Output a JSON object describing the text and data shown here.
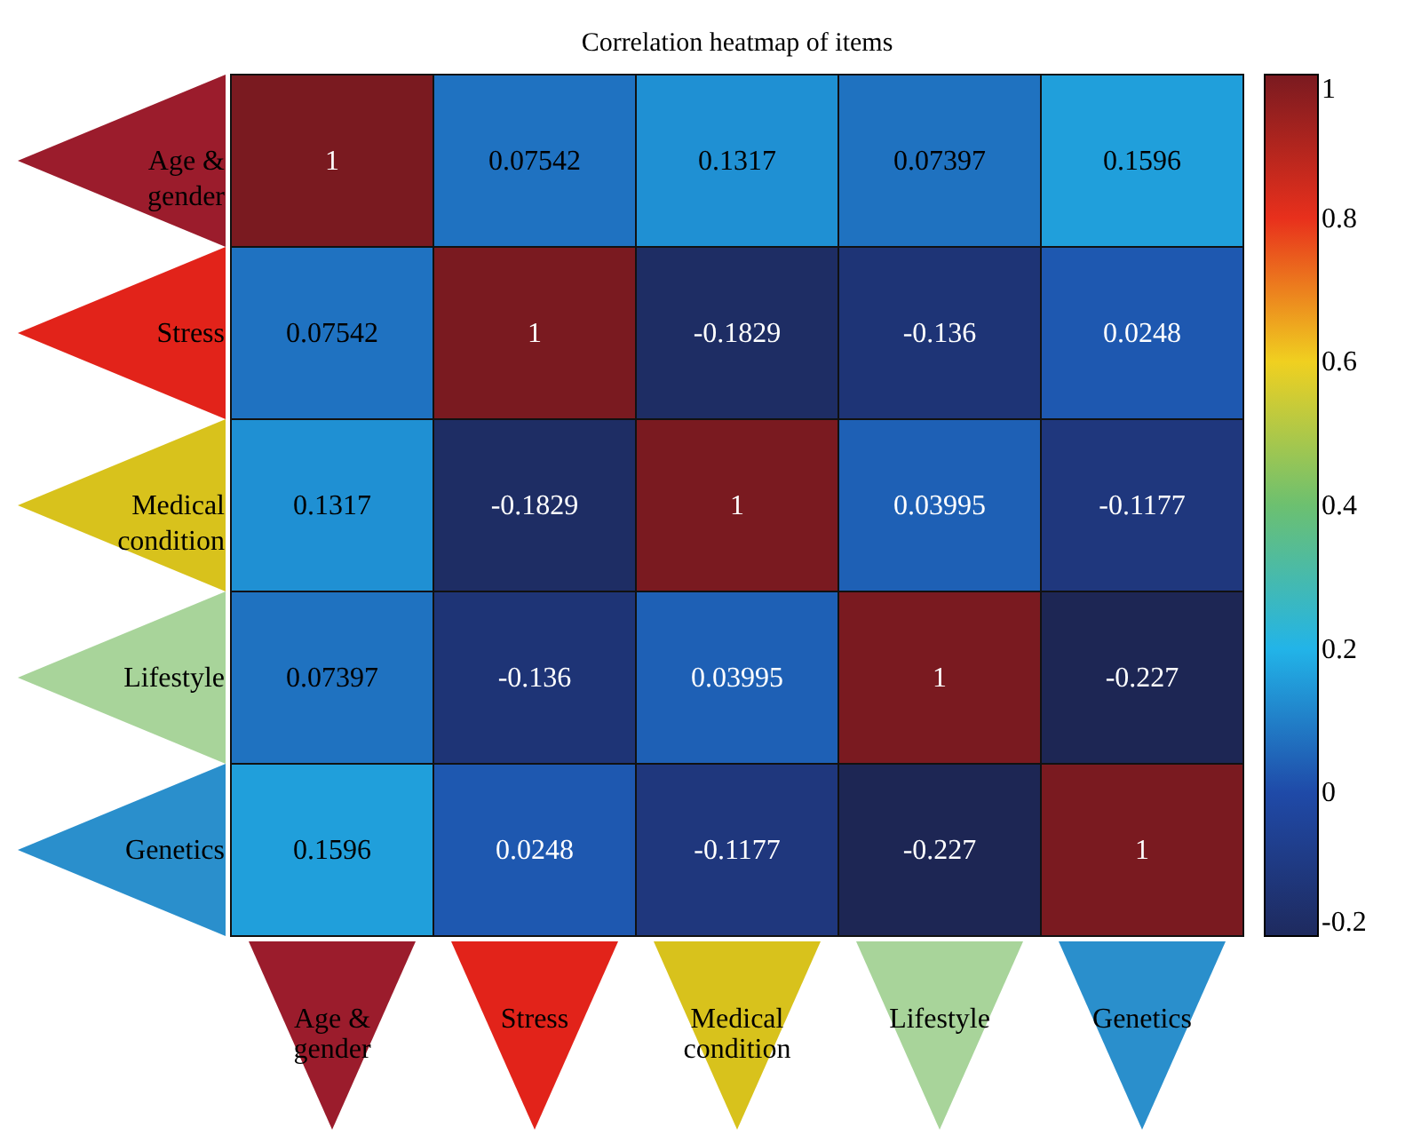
{
  "chart_data": {
    "type": "heatmap",
    "title": "Correlation heatmap of items",
    "categories": [
      "Age & gender",
      "Stress",
      "Medical condition",
      "Lifestyle",
      "Genetics"
    ],
    "y_categories": [
      "Age & gender",
      "Stress",
      "Medical condition",
      "Lifestyle",
      "Genetics"
    ],
    "cells": [
      [
        1,
        0.07542,
        0.1317,
        0.07397,
        0.1596
      ],
      [
        0.07542,
        1,
        -0.1829,
        -0.136,
        0.0248
      ],
      [
        0.1317,
        -0.1829,
        1,
        0.03995,
        -0.1177
      ],
      [
        0.07397,
        -0.136,
        0.03995,
        1,
        -0.227
      ],
      [
        0.1596,
        0.0248,
        -0.1177,
        -0.227,
        1
      ]
    ],
    "data_labels": true,
    "clim": [
      -0.2,
      1
    ],
    "cticks": [
      -0.2,
      0,
      0.2,
      0.4,
      0.6,
      0.8,
      1
    ]
  }
}
